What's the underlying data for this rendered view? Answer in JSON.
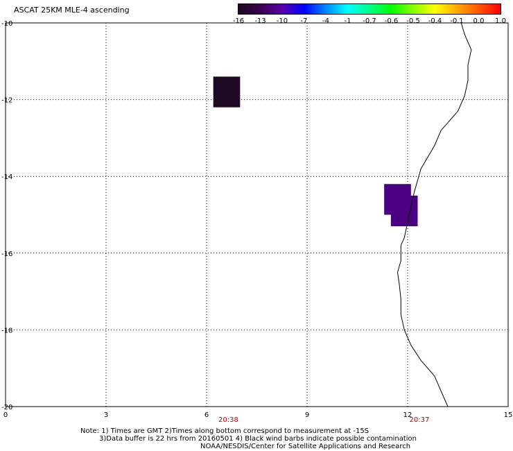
{
  "title": "ASCAT 25KM MLE-4 ascending",
  "colorbar": {
    "labels": [
      "-16",
      "-13",
      "-10",
      "-7",
      "-4",
      "-1",
      "-0.7",
      "-0.6",
      "-0.5",
      "-0.4",
      "-0.1",
      "0.0",
      "1.0"
    ],
    "colors": [
      "#1a0a1e",
      "#3c0050",
      "#5a00aa",
      "#0000ff",
      "#0088ff",
      "#00ffff",
      "#00ff88",
      "#00ff00",
      "#88ff00",
      "#ffff00",
      "#ffaa00",
      "#ff5500",
      "#ff0000"
    ]
  },
  "map": {
    "x_ticks": [
      "0",
      "3",
      "6",
      "9",
      "12",
      "15"
    ],
    "y_ticks": [
      "-10",
      "-12",
      "-14",
      "-16",
      "-18",
      "-20"
    ],
    "xlim": [
      0,
      15
    ],
    "ylim": [
      -20,
      -10
    ],
    "cells": [
      {
        "lon": 6.2,
        "lat": -11.4,
        "w": 0.8,
        "h": 0.8,
        "color": "#1e0a22",
        "value": -16
      },
      {
        "lon": 11.3,
        "lat": -14.2,
        "w": 0.8,
        "h": 0.8,
        "color": "#4a0080",
        "value": -13
      },
      {
        "lon": 11.5,
        "lat": -14.5,
        "w": 0.8,
        "h": 0.8,
        "color": "#4a0080",
        "value": -13
      }
    ],
    "coastline": [
      [
        13.6,
        -10.0
      ],
      [
        13.7,
        -10.3
      ],
      [
        13.9,
        -10.7
      ],
      [
        13.8,
        -11.1
      ],
      [
        13.8,
        -11.5
      ],
      [
        13.7,
        -11.9
      ],
      [
        13.5,
        -12.3
      ],
      [
        13.2,
        -12.6
      ],
      [
        13.0,
        -12.8
      ],
      [
        12.8,
        -13.2
      ],
      [
        12.6,
        -13.5
      ],
      [
        12.4,
        -13.8
      ],
      [
        12.3,
        -14.1
      ],
      [
        12.2,
        -14.4
      ],
      [
        12.1,
        -14.8
      ],
      [
        12.0,
        -15.2
      ],
      [
        11.9,
        -15.6
      ],
      [
        11.8,
        -15.8
      ],
      [
        11.8,
        -16.2
      ],
      [
        11.7,
        -16.5
      ],
      [
        11.75,
        -16.8
      ],
      [
        11.8,
        -17.2
      ],
      [
        11.8,
        -17.6
      ],
      [
        11.9,
        -18.0
      ],
      [
        12.1,
        -18.4
      ],
      [
        12.4,
        -18.8
      ],
      [
        12.8,
        -19.2
      ],
      [
        13.0,
        -19.6
      ],
      [
        13.2,
        -20.0
      ]
    ]
  },
  "times": [
    {
      "label": "20:38",
      "lon": 6.6
    },
    {
      "label": "20:37",
      "lon": 12.3
    }
  ],
  "notes": [
    "Note: 1) Times are GMT 2)Times along bottom correspond to measurement at -15S",
    "3)Data buffer is 22 hrs from 20160501 4) Black wind barbs indicate possible contamination",
    "NOAA/NESDIS/Center for Satellite Applications and Research"
  ]
}
